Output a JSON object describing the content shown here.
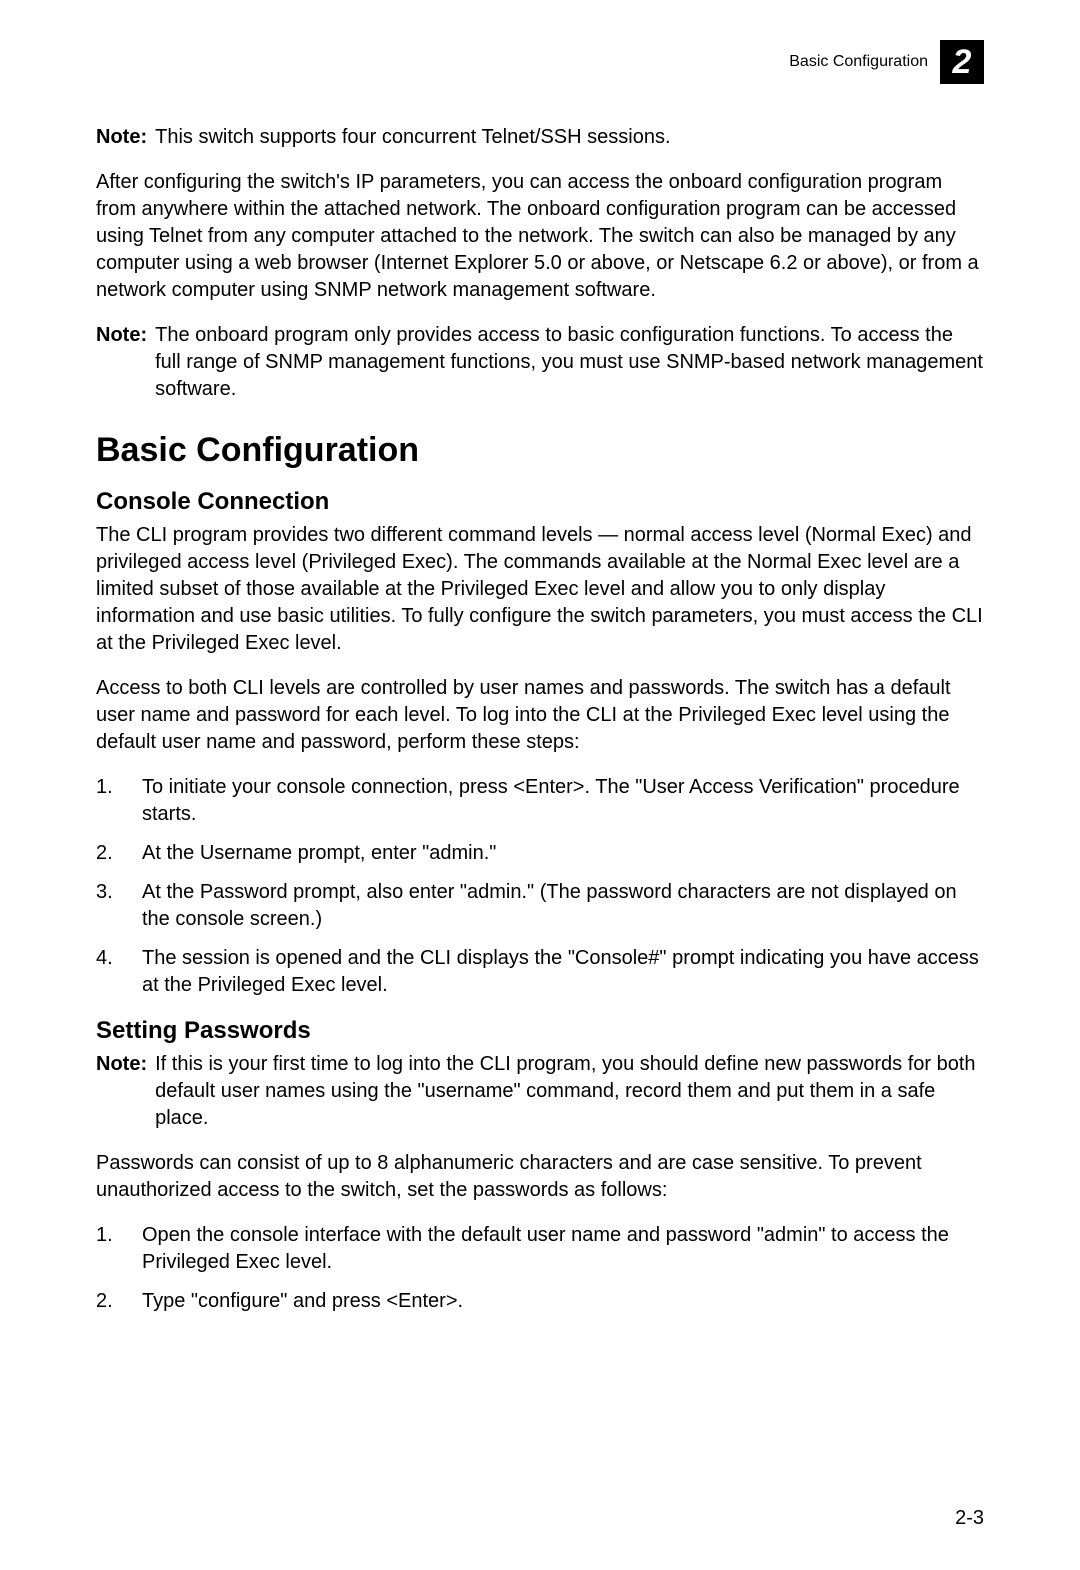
{
  "header": {
    "title": "Basic Configuration",
    "chapter_number": "2"
  },
  "note1": {
    "label": "Note:",
    "text": "This switch supports four concurrent Telnet/SSH sessions."
  },
  "intro_para": "After configuring the switch's IP parameters, you can access the onboard configuration program from anywhere within the attached network. The onboard configuration program can be accessed using Telnet from any computer attached to the network. The switch can also be managed by any computer using a web browser (Internet Explorer 5.0 or above, or Netscape 6.2 or above), or from a network computer using SNMP network management software.",
  "note2": {
    "label": "Note:",
    "text": "The onboard program only provides access to basic configuration functions. To access the full range of SNMP management functions, you must use SNMP-based network management software."
  },
  "section": {
    "title": "Basic Configuration"
  },
  "sub1": {
    "title": "Console Connection",
    "para1": "The CLI program provides two different command levels — normal access level (Normal Exec) and privileged access level (Privileged Exec). The commands available at the Normal Exec level are a limited subset of those available at the Privileged Exec level and allow you to only display information and use basic utilities. To fully configure the switch parameters, you must access the CLI at the Privileged Exec level.",
    "para2": "Access to both CLI levels are controlled by user names and passwords. The switch has a default user name and password for each level. To log into the CLI at the Privileged Exec level using the default user name and password, perform these steps:",
    "steps": [
      "To initiate your console connection, press <Enter>. The \"User Access Verification\" procedure starts.",
      "At the Username prompt, enter \"admin.\"",
      "At the Password prompt, also enter \"admin.\" (The password characters are not displayed on the console screen.)",
      "The session is opened and the CLI displays the \"Console#\" prompt indicating you have access at the Privileged Exec level."
    ]
  },
  "sub2": {
    "title": "Setting Passwords",
    "note": {
      "label": "Note:",
      "text": "If this is your first time to log into the CLI program, you should define new passwords for both default user names using the \"username\" command, record them and put them in a safe place."
    },
    "para1": "Passwords can consist of up to 8 alphanumeric characters and are case sensitive. To prevent unauthorized access to the switch, set the passwords as follows:",
    "steps": [
      "Open the console interface with the default user name and password \"admin\" to access the Privileged Exec level.",
      "Type \"configure\" and press <Enter>."
    ]
  },
  "page_number": "2-3"
}
